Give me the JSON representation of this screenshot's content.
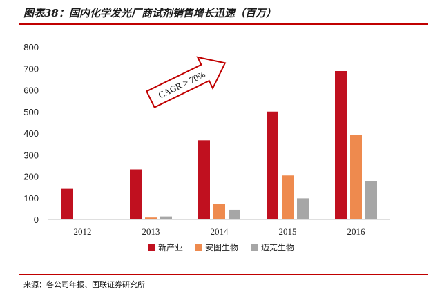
{
  "header": {
    "title": "图表38：国内化学发光厂商试剂销售增长迅速（百万）"
  },
  "source": {
    "text": "来源：各公司年报、国联证券研究所"
  },
  "colors": {
    "accent": "#c00000"
  },
  "chart_data": {
    "type": "bar",
    "title": "",
    "xlabel": "",
    "ylabel": "",
    "ylim": [
      0,
      800
    ],
    "yticks": [
      0,
      100,
      200,
      300,
      400,
      500,
      600,
      700,
      800
    ],
    "grid": false,
    "legend": "bottom",
    "categories": [
      "2012",
      "2013",
      "2014",
      "2015",
      "2016"
    ],
    "series": [
      {
        "name": "新产业",
        "color": "#c0101f",
        "values": [
          142,
          232,
          367,
          500,
          688
        ]
      },
      {
        "name": "安图生物",
        "color": "#ee8a4e",
        "values": [
          0,
          9,
          72,
          204,
          392
        ]
      },
      {
        "name": "迈克生物",
        "color": "#a6a6a6",
        "values": [
          0,
          14,
          45,
          98,
          178
        ]
      }
    ],
    "annotation": {
      "text": "CAGR > 70%",
      "shape": "arrow",
      "direction": "up-right",
      "color": "#c00000"
    }
  }
}
